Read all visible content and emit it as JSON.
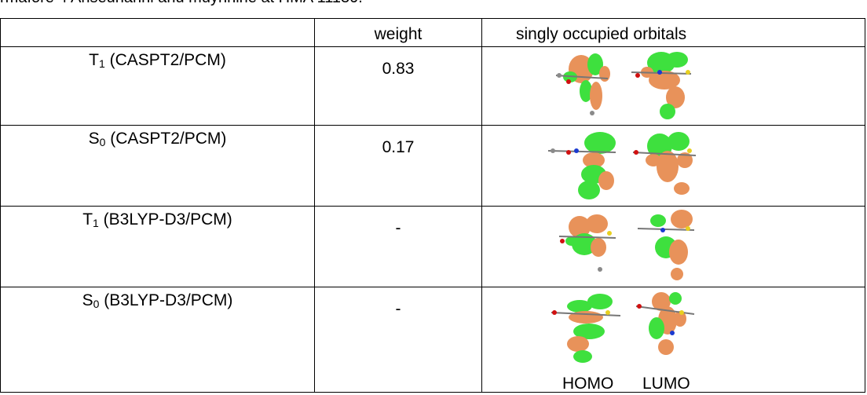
{
  "caption": "rmafore 4 Anseunanni anu muynnine at HMA 11130.",
  "table": {
    "headers": [
      "",
      "weight",
      "singly occupied orbitals"
    ],
    "rows": [
      {
        "state": "T",
        "sub": "1",
        "method": " (CASPT2/PCM)",
        "weight": "0.83"
      },
      {
        "state": "S",
        "sub": "0",
        "method": " (CASPT2/PCM)",
        "weight": "0.17"
      },
      {
        "state": "T",
        "sub": "1",
        "method": " (B3LYP-D3/PCM)",
        "weight": "-"
      },
      {
        "state": "S",
        "sub": "0",
        "method": " (B3LYP-D3/PCM)",
        "weight": "-"
      }
    ],
    "orbital_labels": {
      "homo": "HOMO",
      "lumo": "LUMO"
    }
  },
  "colors": {
    "positive_lobe": "#3ee03e",
    "negative_lobe": "#e8925a",
    "atom_nitrogen": "#1a3ad0",
    "atom_sulfur": "#e8d020",
    "atom_oxygen": "#d01010",
    "atom_carbon": "#8a8a8a"
  }
}
